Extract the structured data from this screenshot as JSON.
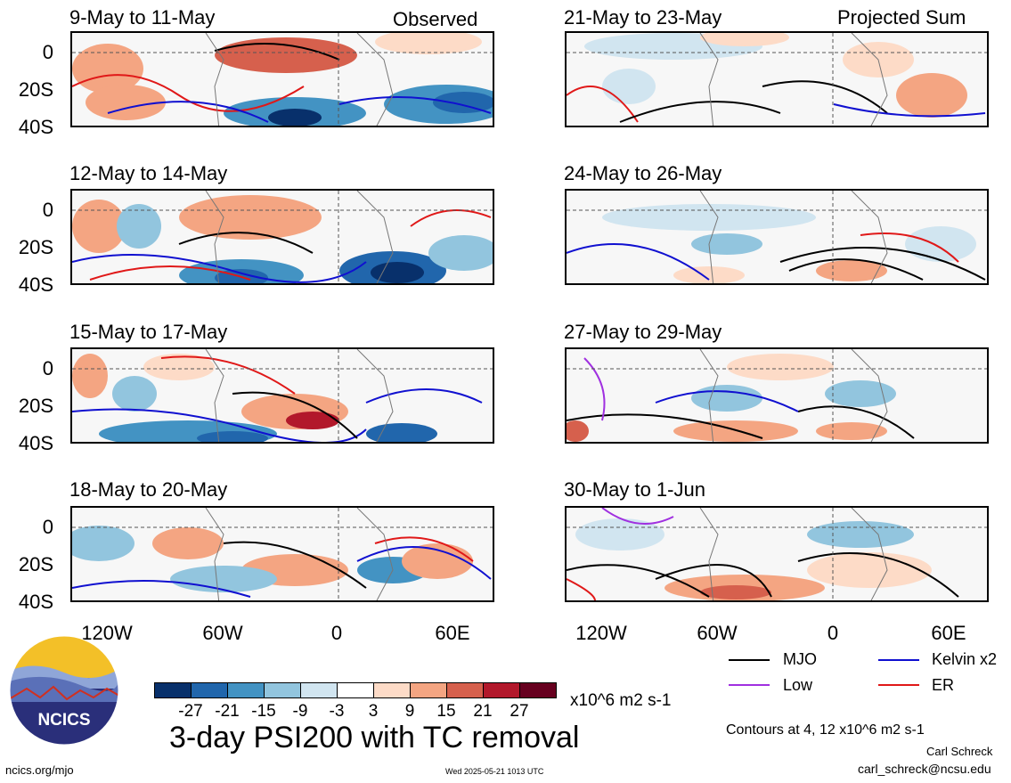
{
  "header": {
    "left_label": "Observed",
    "right_label": "Projected Sum"
  },
  "panels_left": [
    {
      "title": "9-May to 11-May"
    },
    {
      "title": "12-May to 14-May"
    },
    {
      "title": "15-May to 17-May"
    },
    {
      "title": "18-May to 20-May"
    }
  ],
  "panels_right": [
    {
      "title": "21-May to 23-May"
    },
    {
      "title": "24-May to 26-May"
    },
    {
      "title": "27-May to 29-May"
    },
    {
      "title": "30-May to 1-Jun"
    }
  ],
  "y_axis_labels": [
    "0",
    "20S",
    "40S"
  ],
  "x_axis_labels": [
    "120W",
    "60W",
    "0",
    "60E"
  ],
  "legend": {
    "items": [
      {
        "label": "MJO",
        "color": "#000000"
      },
      {
        "label": "Kelvin x2",
        "color": "#1010d0"
      },
      {
        "label": "Low",
        "color": "#a030e0"
      },
      {
        "label": "ER",
        "color": "#e01818"
      }
    ],
    "contours_note": "Contours at 4, 12 x10^6 m2 s-1",
    "author": "Carl Schreck",
    "email": "carl_schreck@ncsu.edu"
  },
  "colorbar": {
    "colors": [
      "#08306b",
      "#2166ac",
      "#4393c3",
      "#92c5de",
      "#d1e5f0",
      "#ffffff",
      "#fddbc7",
      "#f4a582",
      "#d6604d",
      "#b2182b",
      "#67001f"
    ],
    "ticks": [
      "-27",
      "-21",
      "-15",
      "-9",
      "-3",
      "3",
      "9",
      "15",
      "21",
      "27"
    ],
    "units": "x10^6 m2 s-1"
  },
  "main_title": "3-day PSI200 with TC removal",
  "logo_text": "NCICS",
  "footer": {
    "url": "ncics.org/mjo",
    "timestamp": "Wed 2025-05-21 1013 UTC"
  }
}
